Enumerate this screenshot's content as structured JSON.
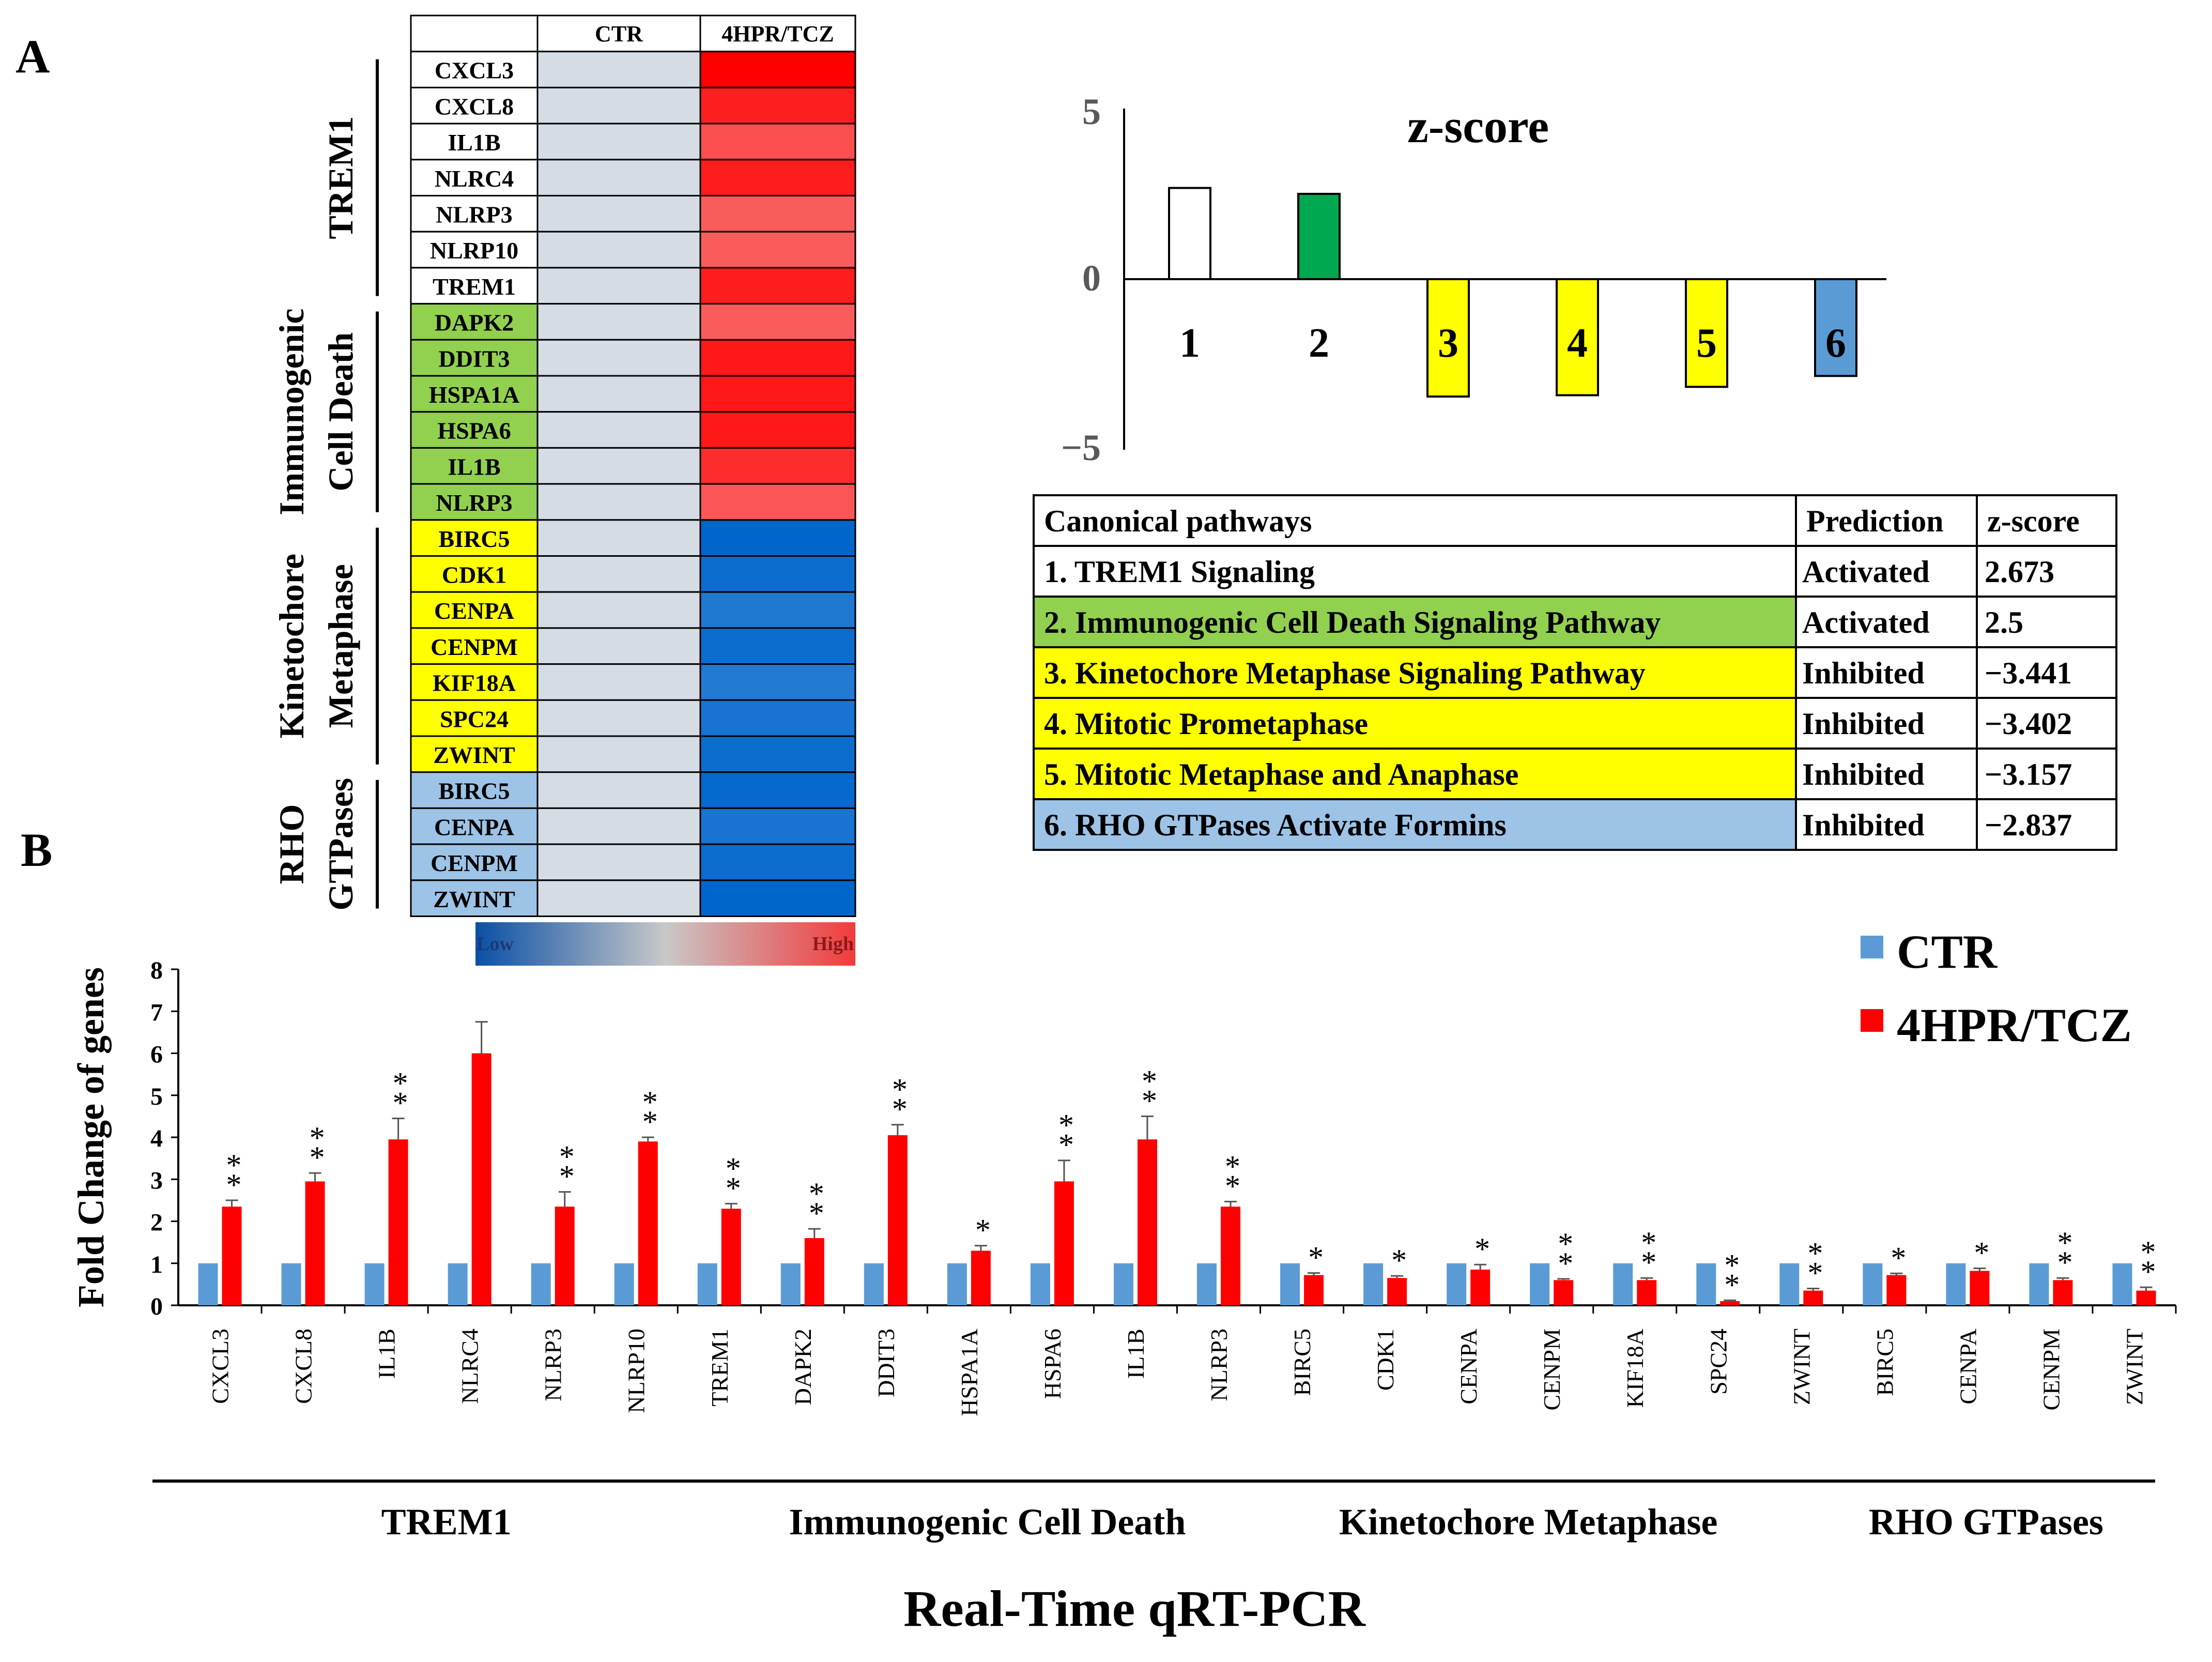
{
  "panel_labels": {
    "a": "A",
    "b": "B"
  },
  "heatmap": {
    "columns": [
      "CTR",
      "4HPR/TCZ"
    ],
    "rows": [
      {
        "gene": "CXCL3",
        "group": "trem1",
        "value": 1.0
      },
      {
        "gene": "CXCL8",
        "group": "trem1",
        "value": 0.85
      },
      {
        "gene": "IL1B",
        "group": "trem1",
        "value": 0.62
      },
      {
        "gene": "NLRC4",
        "group": "trem1",
        "value": 0.86
      },
      {
        "gene": "NLRP3",
        "group": "trem1",
        "value": 0.55
      },
      {
        "gene": "NLRP10",
        "group": "trem1",
        "value": 0.55
      },
      {
        "gene": "TREM1",
        "group": "trem1",
        "value": 0.86
      },
      {
        "gene": "DAPK2",
        "group": "icd",
        "value": 0.55
      },
      {
        "gene": "DDIT3",
        "group": "icd",
        "value": 0.88
      },
      {
        "gene": "HSPA1A",
        "group": "icd",
        "value": 0.88
      },
      {
        "gene": "HSPA6",
        "group": "icd",
        "value": 0.88
      },
      {
        "gene": "IL1B",
        "group": "icd",
        "value": 0.78
      },
      {
        "gene": "NLRP3",
        "group": "icd",
        "value": 0.58
      },
      {
        "gene": "BIRC5",
        "group": "kin",
        "value": -1.0
      },
      {
        "gene": "CDK1",
        "group": "kin",
        "value": -0.92
      },
      {
        "gene": "CENPA",
        "group": "kin",
        "value": -0.8
      },
      {
        "gene": "CENPM",
        "group": "kin",
        "value": -0.92
      },
      {
        "gene": "KIF18A",
        "group": "kin",
        "value": -0.78
      },
      {
        "gene": "SPC24",
        "group": "kin",
        "value": -0.85
      },
      {
        "gene": "ZWINT",
        "group": "kin",
        "value": -0.92
      },
      {
        "gene": "BIRC5",
        "group": "rho",
        "value": -0.97
      },
      {
        "gene": "CENPA",
        "group": "rho",
        "value": -0.85
      },
      {
        "gene": "CENPM",
        "group": "rho",
        "value": -0.92
      },
      {
        "gene": "ZWINT",
        "group": "rho",
        "value": -1.0
      }
    ],
    "group_labels": [
      {
        "key": "trem1",
        "lines": [
          "TREM1"
        ]
      },
      {
        "key": "icd",
        "lines": [
          "Immunogenic",
          "Cell Death"
        ]
      },
      {
        "key": "kin",
        "lines": [
          "Kinetochore",
          "Metaphase"
        ]
      },
      {
        "key": "rho",
        "lines": [
          "RHO",
          "GTPases"
        ]
      }
    ],
    "legend": {
      "low": "Low",
      "high": "High"
    }
  },
  "zscore_chart": {
    "title": "z-score",
    "ylim": [
      -5,
      5
    ],
    "ticks": [
      "5",
      "0",
      "−5"
    ],
    "bars": [
      {
        "label": "1",
        "value": 2.673,
        "color": "#ffffff"
      },
      {
        "label": "2",
        "value": 2.5,
        "color": "#00a84f"
      },
      {
        "label": "3",
        "value": -3.441,
        "color": "#ffff00"
      },
      {
        "label": "4",
        "value": -3.402,
        "color": "#ffff00"
      },
      {
        "label": "5",
        "value": -3.157,
        "color": "#ffff00"
      },
      {
        "label": "6",
        "value": -2.837,
        "color": "#5b9bd5"
      }
    ]
  },
  "pathway_table": {
    "headers": [
      "Canonical pathways",
      "Prediction",
      "z-score"
    ],
    "rows": [
      {
        "pathway": "1. TREM1 Signaling",
        "prediction": "Activated",
        "zscore": "2.673",
        "color": "#ffffff"
      },
      {
        "pathway": "2. Immunogenic Cell Death Signaling Pathway",
        "prediction": "Activated",
        "zscore": "2.5",
        "color": "#92d050"
      },
      {
        "pathway": "3. Kinetochore Metaphase Signaling Pathway",
        "prediction": "Inhibited",
        "zscore": "−3.441",
        "color": "#ffff00"
      },
      {
        "pathway": "4. Mitotic Prometaphase",
        "prediction": "Inhibited",
        "zscore": "−3.402",
        "color": "#ffff00"
      },
      {
        "pathway": "5. Mitotic Metaphase and Anaphase",
        "prediction": "Inhibited",
        "zscore": "−3.157",
        "color": "#ffff00"
      },
      {
        "pathway": "6. RHO GTPases Activate Formins",
        "prediction": "Inhibited",
        "zscore": "−2.837",
        "color": "#9dc3e6"
      }
    ]
  },
  "chart_data": {
    "type": "bar",
    "title": "Real-Time qRT-PCR",
    "xlabel": "Real-Time qRT-PCR",
    "ylabel": "Fold Change of genes",
    "ylim": [
      0,
      8
    ],
    "yticks": [
      "0",
      "1",
      "2",
      "3",
      "4",
      "5",
      "6",
      "7",
      "8"
    ],
    "categories": [
      "CXCL3",
      "CXCL8",
      "IL1B",
      "NLRC4",
      "NLRP3",
      "NLRP10",
      "TREM1",
      "DAPK2",
      "DDIT3",
      "HSPA1A",
      "HSPA6",
      "IL1B",
      "NLRP3",
      "BIRC5",
      "CDK1",
      "CENPA",
      "CENPM",
      "KIF18A",
      "SPC24",
      "ZWINT",
      "BIRC5",
      "CENPA",
      "CENPM",
      "ZWINT"
    ],
    "series": [
      {
        "name": "CTR",
        "color": "#5b9bd5",
        "values": [
          1,
          1,
          1,
          1,
          1,
          1,
          1,
          1,
          1,
          1,
          1,
          1,
          1,
          1,
          1,
          1,
          1,
          1,
          1,
          1,
          1,
          1,
          1,
          1
        ]
      },
      {
        "name": "4HPR/TCZ",
        "color": "#ff0000",
        "values": [
          2.35,
          2.95,
          3.95,
          6.0,
          2.35,
          3.9,
          2.3,
          1.6,
          4.05,
          1.3,
          2.95,
          3.95,
          2.35,
          0.72,
          0.65,
          0.85,
          0.6,
          0.6,
          0.1,
          0.35,
          0.72,
          0.82,
          0.6,
          0.35
        ],
        "errors": [
          0.15,
          0.2,
          0.5,
          0.75,
          0.35,
          0.1,
          0.12,
          0.22,
          0.25,
          0.12,
          0.5,
          0.55,
          0.12,
          0.05,
          0.05,
          0.12,
          0.03,
          0.05,
          0.02,
          0.05,
          0.04,
          0.06,
          0.05,
          0.08
        ]
      }
    ],
    "significance": [
      "**",
      "**",
      "**",
      "",
      "**",
      "**",
      "**",
      "**",
      "**",
      "*",
      "**",
      "**",
      "**",
      "*",
      "*",
      "*",
      "**",
      "**",
      "**",
      "**",
      "*",
      "*",
      "**",
      "**"
    ],
    "groups": [
      {
        "label": "TREM1",
        "start": 0,
        "end": 6
      },
      {
        "label": "Immunogenic Cell Death",
        "start": 7,
        "end": 12
      },
      {
        "label": "Kinetochore Metaphase",
        "start": 13,
        "end": 19
      },
      {
        "label": "RHO GTPases",
        "start": 20,
        "end": 23
      }
    ],
    "legend_position": "top-right"
  }
}
